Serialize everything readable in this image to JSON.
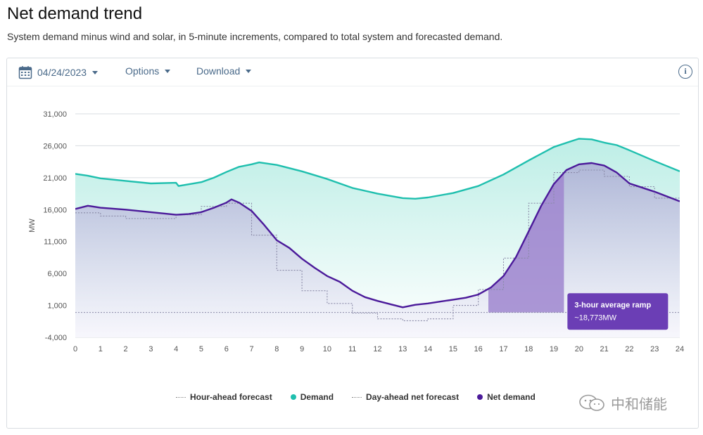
{
  "page": {
    "title": "Net demand trend",
    "subtitle": "System demand minus wind and solar, in 5-minute increments, compared to total system and forecasted demand."
  },
  "toolbar": {
    "date": "04/24/2023",
    "options_label": "Options",
    "download_label": "Download",
    "date_icon": "calendar-icon",
    "info_icon": "info-icon"
  },
  "watermark": {
    "text": "中和储能",
    "icon": "wechat-icon"
  },
  "colors": {
    "demand": "#1fbfae",
    "demand_fill": "#bdeee6",
    "net_demand": "#4b1a9a",
    "net_fill": "#aeb3d6",
    "ramp_fill": "#9f86cf",
    "tooltip_bg": "#6b3eb5",
    "forecast": "#8a8aa8"
  },
  "chart_data": {
    "type": "area",
    "xlabel": "",
    "ylabel": "MW",
    "xlim": [
      0,
      24
    ],
    "ylim": [
      -4000,
      31000
    ],
    "x_ticks": [
      "0",
      "1",
      "2",
      "3",
      "4",
      "5",
      "6",
      "7",
      "8",
      "9",
      "10",
      "11",
      "12",
      "13",
      "14",
      "15",
      "16",
      "17",
      "18",
      "19",
      "20",
      "21",
      "22",
      "23",
      "24"
    ],
    "y_ticks": [
      "-4,000",
      "1,000",
      "6,000",
      "11,000",
      "16,000",
      "21,000",
      "26,000",
      "31,000"
    ],
    "grid": true,
    "legend_position": "bottom",
    "series": [
      {
        "name": "Demand",
        "style": "line-area",
        "points": [
          [
            0,
            21600
          ],
          [
            0.5,
            21300
          ],
          [
            1,
            20900
          ],
          [
            2,
            20500
          ],
          [
            3,
            20100
          ],
          [
            4,
            20200
          ],
          [
            4.1,
            19700
          ],
          [
            5,
            20300
          ],
          [
            5.5,
            21000
          ],
          [
            6,
            21900
          ],
          [
            6.5,
            22700
          ],
          [
            7,
            23100
          ],
          [
            7.3,
            23400
          ],
          [
            8,
            23000
          ],
          [
            9,
            22000
          ],
          [
            10,
            20800
          ],
          [
            11,
            19400
          ],
          [
            12,
            18500
          ],
          [
            13,
            17800
          ],
          [
            13.5,
            17700
          ],
          [
            14,
            17900
          ],
          [
            15,
            18600
          ],
          [
            16,
            19700
          ],
          [
            17,
            21500
          ],
          [
            18,
            23700
          ],
          [
            19,
            25800
          ],
          [
            19.6,
            26600
          ],
          [
            20,
            27100
          ],
          [
            20.5,
            27000
          ],
          [
            21,
            26500
          ],
          [
            21.5,
            26100
          ],
          [
            22,
            25300
          ],
          [
            23,
            23600
          ],
          [
            24,
            22000
          ]
        ]
      },
      {
        "name": "Net demand",
        "style": "line-area",
        "points": [
          [
            0,
            16100
          ],
          [
            0.5,
            16600
          ],
          [
            1,
            16300
          ],
          [
            2,
            16000
          ],
          [
            3,
            15600
          ],
          [
            4,
            15200
          ],
          [
            4.5,
            15300
          ],
          [
            5,
            15600
          ],
          [
            5.5,
            16300
          ],
          [
            6,
            17100
          ],
          [
            6.2,
            17600
          ],
          [
            6.5,
            17100
          ],
          [
            7,
            15800
          ],
          [
            7.5,
            13600
          ],
          [
            8,
            11200
          ],
          [
            8.5,
            10000
          ],
          [
            9,
            8300
          ],
          [
            9.5,
            6900
          ],
          [
            10,
            5600
          ],
          [
            10.5,
            4700
          ],
          [
            11,
            3300
          ],
          [
            11.5,
            2300
          ],
          [
            12,
            1700
          ],
          [
            12.5,
            1200
          ],
          [
            13,
            700
          ],
          [
            13.5,
            1100
          ],
          [
            14,
            1300
          ],
          [
            14.5,
            1600
          ],
          [
            15,
            1900
          ],
          [
            15.5,
            2200
          ],
          [
            16,
            2700
          ],
          [
            16.5,
            3800
          ],
          [
            17,
            5600
          ],
          [
            17.5,
            8600
          ],
          [
            18,
            12600
          ],
          [
            18.5,
            16600
          ],
          [
            19,
            20000
          ],
          [
            19.5,
            22200
          ],
          [
            20,
            23100
          ],
          [
            20.5,
            23300
          ],
          [
            21,
            22900
          ],
          [
            21.5,
            21800
          ],
          [
            22,
            20100
          ],
          [
            23,
            18800
          ],
          [
            24,
            17300
          ]
        ]
      },
      {
        "name": "Day-ahead net forecast",
        "style": "dotted-step",
        "points": [
          [
            0,
            15500
          ],
          [
            1,
            15500
          ],
          [
            1,
            15000
          ],
          [
            2,
            15000
          ],
          [
            2,
            14600
          ],
          [
            4,
            14600
          ],
          [
            4,
            15200
          ],
          [
            5,
            15200
          ],
          [
            5,
            16500
          ],
          [
            6,
            16500
          ],
          [
            6,
            17000
          ],
          [
            7,
            17000
          ],
          [
            7,
            12000
          ],
          [
            8,
            12000
          ],
          [
            8,
            6500
          ],
          [
            9,
            6500
          ],
          [
            9,
            3300
          ],
          [
            10,
            3300
          ],
          [
            10,
            1300
          ],
          [
            11,
            1300
          ],
          [
            11,
            -200
          ],
          [
            12,
            -200
          ],
          [
            12,
            -1100
          ],
          [
            13,
            -1100
          ],
          [
            13,
            -1400
          ],
          [
            14,
            -1400
          ],
          [
            14,
            -1100
          ],
          [
            15,
            -1100
          ],
          [
            15,
            1000
          ],
          [
            16,
            1000
          ],
          [
            16,
            3500
          ],
          [
            17,
            3500
          ],
          [
            17,
            8400
          ],
          [
            18,
            8400
          ],
          [
            18,
            17000
          ],
          [
            19,
            17000
          ],
          [
            19,
            21800
          ],
          [
            20,
            21800
          ],
          [
            20,
            22200
          ],
          [
            21,
            22200
          ],
          [
            21,
            21200
          ],
          [
            22,
            21200
          ],
          [
            22,
            19600
          ],
          [
            23,
            19600
          ],
          [
            23,
            17800
          ],
          [
            24,
            17800
          ]
        ]
      },
      {
        "name": "Hour-ahead forecast",
        "style": "dotted",
        "points": [
          [
            0,
            -100
          ],
          [
            24,
            -100
          ]
        ]
      }
    ],
    "annotations": [
      {
        "type": "ramp-band",
        "x_start": 16.4,
        "x_end": 19.4,
        "title": "3-hour average ramp",
        "value": "~18,773MW"
      }
    ]
  }
}
